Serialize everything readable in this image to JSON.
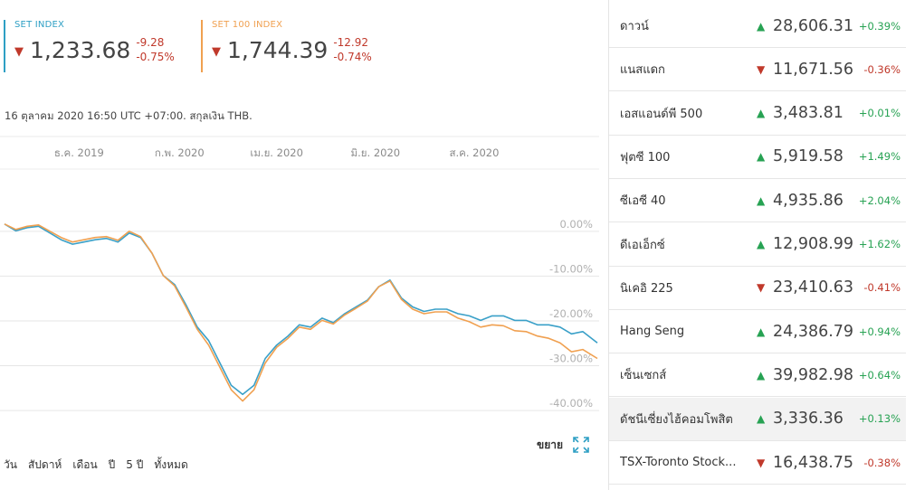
{
  "indices": [
    {
      "name": "SET INDEX",
      "value": "1,233.68",
      "change": "-9.28",
      "change_pct": "-0.75%",
      "color": "#2e9fc4"
    },
    {
      "name": "SET 100 INDEX",
      "value": "1,744.39",
      "change": "-12.92",
      "change_pct": "-0.74%",
      "color": "#f0a050"
    }
  ],
  "date_note": "16 ตุลาคม 2020 16:50 UTC +07:00. สกุลเงิน THB.",
  "expand_label": "ขยาย",
  "range_buttons": [
    "วัน",
    "สัปดาห์",
    "เดือน",
    "ปี",
    "5 ปี",
    "ทั้งหมด"
  ],
  "chart_data": {
    "type": "line",
    "x_tick_labels": [
      "ธ.ค. 2019",
      "ก.พ. 2020",
      "เม.ย. 2020",
      "มิ.ย. 2020",
      "ส.ค. 2020"
    ],
    "x_tick_dates": [
      "2019-12-01",
      "2020-02-01",
      "2020-04-01",
      "2020-06-01",
      "2020-08-01"
    ],
    "x_range": [
      "2019-10-16",
      "2020-10-16"
    ],
    "y_tick_labels": [
      "0.00%",
      "-10.00%",
      "-20.00%",
      "-30.00%",
      "-40.00%"
    ],
    "y_ticks": [
      0,
      -10,
      -20,
      -30,
      -40
    ],
    "ylim": [
      -42,
      4
    ],
    "grid": true,
    "series": [
      {
        "name": "SET INDEX",
        "color": "#3aa0c8",
        "x": [
          "2019-10-16",
          "2019-10-23",
          "2019-10-30",
          "2019-11-06",
          "2019-11-13",
          "2019-11-20",
          "2019-11-27",
          "2019-12-04",
          "2019-12-11",
          "2019-12-18",
          "2019-12-25",
          "2020-01-01",
          "2020-01-08",
          "2020-01-15",
          "2020-01-22",
          "2020-01-29",
          "2020-02-05",
          "2020-02-12",
          "2020-02-19",
          "2020-02-26",
          "2020-03-04",
          "2020-03-11",
          "2020-03-18",
          "2020-03-25",
          "2020-04-01",
          "2020-04-08",
          "2020-04-15",
          "2020-04-22",
          "2020-04-29",
          "2020-05-06",
          "2020-05-13",
          "2020-05-20",
          "2020-05-27",
          "2020-06-03",
          "2020-06-10",
          "2020-06-17",
          "2020-06-24",
          "2020-07-01",
          "2020-07-08",
          "2020-07-15",
          "2020-07-22",
          "2020-07-29",
          "2020-08-05",
          "2020-08-12",
          "2020-08-19",
          "2020-08-26",
          "2020-09-02",
          "2020-09-09",
          "2020-09-16",
          "2020-09-23",
          "2020-09-30",
          "2020-10-07",
          "2020-10-16"
        ],
        "values": [
          0,
          -1.5,
          -0.8,
          -0.5,
          -2,
          -3.5,
          -4.5,
          -4,
          -3.5,
          -3.2,
          -4,
          -2,
          -3,
          -6.5,
          -11.5,
          -13.5,
          -18,
          -23,
          -26,
          -31,
          -36,
          -38,
          -36,
          -30,
          -27,
          -25,
          -22.5,
          -23,
          -21,
          -22,
          -20,
          -18.5,
          -17,
          -14,
          -12.5,
          -16.5,
          -18.5,
          -19.5,
          -19,
          -19,
          -20,
          -20.5,
          -21.5,
          -20.5,
          -20.5,
          -21.5,
          -21.5,
          -22.5,
          -22.5,
          -23,
          -24.5,
          -24,
          -26.5
        ]
      },
      {
        "name": "SET 100 INDEX",
        "color": "#f0a050",
        "x": [
          "2019-10-16",
          "2019-10-23",
          "2019-10-30",
          "2019-11-06",
          "2019-11-13",
          "2019-11-20",
          "2019-11-27",
          "2019-12-04",
          "2019-12-11",
          "2019-12-18",
          "2019-12-25",
          "2020-01-01",
          "2020-01-08",
          "2020-01-15",
          "2020-01-22",
          "2020-01-29",
          "2020-02-05",
          "2020-02-12",
          "2020-02-19",
          "2020-02-26",
          "2020-03-04",
          "2020-03-11",
          "2020-03-18",
          "2020-03-25",
          "2020-04-01",
          "2020-04-08",
          "2020-04-15",
          "2020-04-22",
          "2020-04-29",
          "2020-05-06",
          "2020-05-13",
          "2020-05-20",
          "2020-05-27",
          "2020-06-03",
          "2020-06-10",
          "2020-06-17",
          "2020-06-24",
          "2020-07-01",
          "2020-07-08",
          "2020-07-15",
          "2020-07-22",
          "2020-07-29",
          "2020-08-05",
          "2020-08-12",
          "2020-08-19",
          "2020-08-26",
          "2020-09-02",
          "2020-09-09",
          "2020-09-16",
          "2020-09-23",
          "2020-09-30",
          "2020-10-07",
          "2020-10-16"
        ],
        "values": [
          0,
          -1.2,
          -0.5,
          -0.2,
          -1.6,
          -3,
          -4,
          -3.5,
          -3,
          -2.8,
          -3.6,
          -1.6,
          -2.8,
          -6.5,
          -11.5,
          -13.8,
          -18.5,
          -23.5,
          -27,
          -32,
          -37,
          -39.5,
          -37,
          -31,
          -27.5,
          -25.5,
          -23,
          -23.5,
          -21.5,
          -22.3,
          -20.3,
          -18.8,
          -17.2,
          -14,
          -12.7,
          -16.8,
          -19,
          -20,
          -19.6,
          -19.6,
          -21,
          -21.8,
          -23,
          -22.5,
          -22.7,
          -23.8,
          -24,
          -25,
          -25.5,
          -26.5,
          -28.5,
          -28,
          -30
        ]
      }
    ]
  },
  "quotes": [
    {
      "name": "ดาวน์",
      "direction": "up",
      "value": "28,606.31",
      "change": "+0.39%"
    },
    {
      "name": "แนสแดก",
      "direction": "down",
      "value": "11,671.56",
      "change": "-0.36%"
    },
    {
      "name": "เอสแอนด์พี 500",
      "direction": "up",
      "value": "3,483.81",
      "change": "+0.01%"
    },
    {
      "name": "ฟุตซี 100",
      "direction": "up",
      "value": "5,919.58",
      "change": "+1.49%"
    },
    {
      "name": "ซีเอซี 40",
      "direction": "up",
      "value": "4,935.86",
      "change": "+2.04%"
    },
    {
      "name": "ดีเอเอ็กซ์",
      "direction": "up",
      "value": "12,908.99",
      "change": "+1.62%"
    },
    {
      "name": "นิเคอิ 225",
      "direction": "down",
      "value": "23,410.63",
      "change": "-0.41%"
    },
    {
      "name": "Hang Seng",
      "direction": "up",
      "value": "24,386.79",
      "change": "+0.94%"
    },
    {
      "name": "เซ็นเซกส์",
      "direction": "up",
      "value": "39,982.98",
      "change": "+0.64%"
    },
    {
      "name": "ดัชนีเซี่ยงไฮ้คอมโพสิต",
      "direction": "up",
      "value": "3,336.36",
      "change": "+0.13%"
    },
    {
      "name": "TSX-Toronto Stock...",
      "direction": "down",
      "value": "16,438.75",
      "change": "-0.38%"
    }
  ]
}
